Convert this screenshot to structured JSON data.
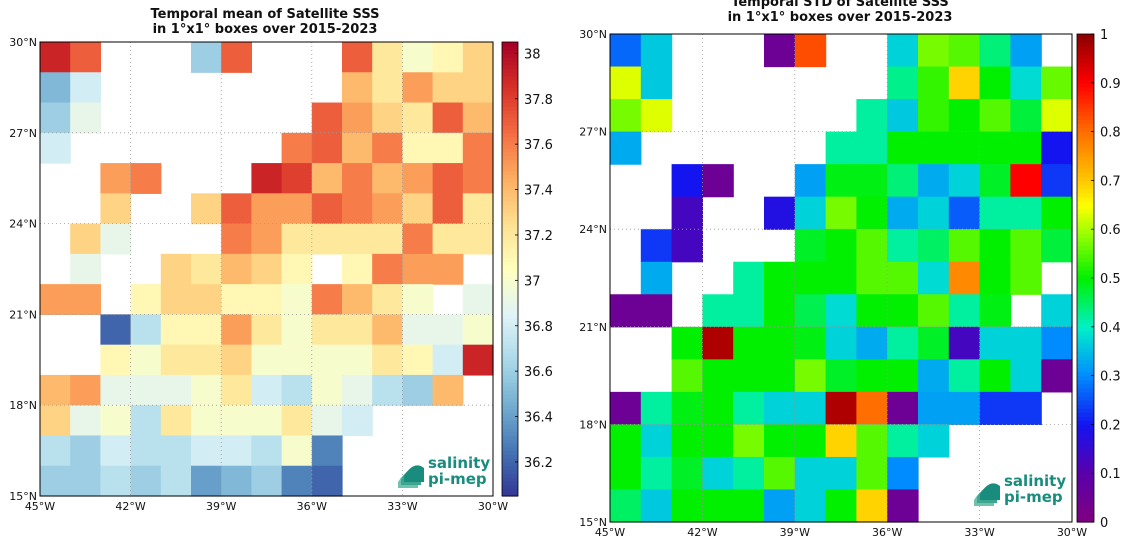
{
  "chart_data": [
    {
      "type": "heatmap",
      "title": "Temporal mean of Satellite SSS",
      "subtitle": "in 1°x1° boxes over 2015-2023",
      "x_ticks": [
        "45°W",
        "42°W",
        "39°W",
        "36°W",
        "33°W",
        "30°W"
      ],
      "y_ticks": [
        "15°N",
        "18°N",
        "21°N",
        "24°N",
        "27°N",
        "30°N"
      ],
      "x_range": [
        -45,
        -30
      ],
      "y_range": [
        15,
        30
      ],
      "colorbar": {
        "min": 36.05,
        "max": 38.05,
        "ticks": [
          "36.2",
          "36.4",
          "36.6",
          "36.8",
          "37",
          "37.2",
          "37.4",
          "37.6",
          "37.8",
          "38"
        ],
        "colormap": "RdYlBu_r"
      },
      "grid": [
        [
          37.9,
          37.7,
          null,
          null,
          null,
          36.6,
          37.7,
          null,
          null,
          null,
          37.7,
          37.2,
          37.0,
          37.1,
          37.3
        ],
        [
          36.5,
          36.8,
          null,
          null,
          null,
          null,
          null,
          null,
          null,
          null,
          37.4,
          37.2,
          37.5,
          37.3,
          37.3
        ],
        [
          36.6,
          36.9,
          null,
          null,
          null,
          null,
          null,
          null,
          null,
          37.7,
          37.5,
          37.3,
          37.2,
          37.7,
          37.4
        ],
        [
          36.8,
          null,
          null,
          null,
          null,
          null,
          null,
          null,
          37.6,
          37.7,
          37.4,
          37.6,
          37.1,
          37.1,
          37.6
        ],
        [
          null,
          null,
          37.5,
          37.6,
          null,
          null,
          null,
          37.9,
          37.8,
          37.4,
          37.6,
          37.4,
          37.5,
          37.7,
          37.6
        ],
        [
          null,
          null,
          37.3,
          null,
          null,
          37.3,
          37.7,
          37.5,
          37.5,
          37.7,
          37.6,
          37.5,
          37.3,
          37.7,
          37.2
        ],
        [
          null,
          37.3,
          36.9,
          null,
          null,
          null,
          37.6,
          37.5,
          37.2,
          37.2,
          37.2,
          37.2,
          37.6,
          37.2,
          37.2
        ],
        [
          null,
          36.9,
          null,
          null,
          37.3,
          37.2,
          37.4,
          37.3,
          37.1,
          null,
          37.1,
          37.6,
          37.5,
          37.5,
          null
        ],
        [
          37.5,
          37.5,
          null,
          37.1,
          37.3,
          37.3,
          37.1,
          37.1,
          37.0,
          37.6,
          37.4,
          37.2,
          37.0,
          null,
          36.9
        ],
        [
          null,
          null,
          36.2,
          36.7,
          37.1,
          37.1,
          37.5,
          37.2,
          37.0,
          37.2,
          37.2,
          37.4,
          36.9,
          36.9,
          37.0
        ],
        [
          null,
          null,
          37.1,
          37.0,
          37.2,
          37.2,
          37.3,
          37.0,
          37.0,
          37.0,
          37.0,
          37.2,
          37.1,
          36.8,
          37.9
        ],
        [
          37.4,
          37.5,
          36.9,
          36.9,
          36.9,
          37.0,
          37.2,
          36.8,
          36.7,
          37.0,
          36.9,
          36.7,
          36.6,
          37.4,
          null
        ],
        [
          37.3,
          36.9,
          37.0,
          36.7,
          37.2,
          37.0,
          37.0,
          37.0,
          37.2,
          36.9,
          36.8,
          null,
          null,
          null,
          null
        ],
        [
          36.7,
          36.6,
          36.8,
          36.7,
          36.7,
          36.8,
          36.8,
          36.7,
          37.0,
          36.3,
          null,
          null,
          null,
          null,
          null
        ],
        [
          36.6,
          36.6,
          36.7,
          36.6,
          36.7,
          36.4,
          36.5,
          36.6,
          36.3,
          36.2,
          null,
          null,
          null,
          null,
          null
        ]
      ]
    },
    {
      "type": "heatmap",
      "title": "Temporal STD of Satellite SSS",
      "subtitle": "in 1°x1° boxes over 2015-2023",
      "x_ticks": [
        "45°W",
        "42°W",
        "39°W",
        "36°W",
        "33°W",
        "30°W"
      ],
      "y_ticks": [
        "15°N",
        "18°N",
        "21°N",
        "24°N",
        "27°N",
        "30°N"
      ],
      "x_range": [
        -45,
        -30
      ],
      "y_range": [
        15,
        30
      ],
      "colorbar": {
        "min": 0,
        "max": 1,
        "ticks": [
          "0",
          "0.1",
          "0.2",
          "0.3",
          "0.4",
          "0.5",
          "0.6",
          "0.7",
          "0.8",
          "0.9",
          "1"
        ],
        "colormap": "nipy_spectral-like"
      },
      "grid": [
        [
          0.27,
          0.36,
          null,
          null,
          null,
          0.05,
          0.83,
          null,
          null,
          0.37,
          0.57,
          0.55,
          0.44,
          0.32,
          null
        ],
        [
          0.63,
          0.36,
          null,
          null,
          null,
          null,
          null,
          null,
          null,
          0.43,
          0.53,
          0.69,
          0.5,
          0.38,
          0.56
        ],
        [
          0.57,
          0.63,
          null,
          null,
          null,
          null,
          null,
          null,
          0.42,
          0.36,
          0.53,
          0.5,
          0.55,
          0.47,
          0.63
        ],
        [
          0.33,
          null,
          null,
          null,
          null,
          null,
          null,
          0.42,
          0.42,
          0.5,
          0.5,
          0.5,
          0.5,
          0.5,
          0.2
        ],
        [
          null,
          null,
          0.2,
          0.05,
          null,
          null,
          0.32,
          0.49,
          0.49,
          0.44,
          0.33,
          0.37,
          0.48,
          0.9,
          0.23
        ],
        [
          null,
          null,
          0.13,
          null,
          null,
          0.18,
          0.37,
          0.57,
          0.5,
          0.33,
          0.37,
          0.26,
          0.42,
          0.42,
          0.5
        ],
        [
          null,
          0.23,
          0.13,
          null,
          null,
          null,
          0.48,
          0.5,
          0.55,
          0.42,
          0.45,
          0.55,
          0.5,
          0.55,
          0.47
        ],
        [
          null,
          0.33,
          null,
          null,
          0.42,
          0.5,
          0.5,
          0.5,
          0.55,
          0.55,
          0.38,
          0.77,
          0.5,
          0.55,
          null
        ],
        [
          0.05,
          0.05,
          null,
          0.42,
          0.42,
          0.5,
          0.46,
          0.38,
          0.5,
          0.5,
          0.55,
          0.42,
          0.49,
          null,
          0.37
        ],
        [
          null,
          null,
          0.5,
          0.97,
          0.5,
          0.5,
          0.49,
          0.37,
          0.33,
          0.42,
          0.48,
          0.13,
          0.37,
          0.37,
          0.3
        ],
        [
          null,
          null,
          0.55,
          0.5,
          0.5,
          0.5,
          0.57,
          0.48,
          0.5,
          0.5,
          0.33,
          0.42,
          0.5,
          0.37,
          0.05
        ],
        [
          0.05,
          0.42,
          0.49,
          0.5,
          0.42,
          0.37,
          0.37,
          0.97,
          0.8,
          0.05,
          0.32,
          0.32,
          0.23,
          0.23,
          null
        ],
        [
          0.5,
          0.37,
          0.5,
          0.5,
          0.57,
          0.5,
          0.5,
          0.69,
          0.55,
          0.42,
          0.37,
          null,
          null,
          null,
          null
        ],
        [
          0.5,
          0.42,
          0.48,
          0.37,
          0.42,
          0.55,
          0.37,
          0.37,
          0.55,
          0.3,
          null,
          null,
          null,
          null,
          null
        ],
        [
          0.45,
          0.36,
          0.5,
          0.5,
          0.5,
          0.32,
          0.37,
          0.5,
          0.69,
          0.05,
          null,
          null,
          null,
          null,
          null
        ]
      ]
    }
  ],
  "logo": {
    "line1": "salinity",
    "line2": "pi-mep",
    "color1": "#1a8c7e",
    "color2": "#1a8c7e"
  },
  "colors": {
    "grid_line": "#9a9a9a",
    "missing": "#ffffff",
    "axes_border": "#000000"
  }
}
